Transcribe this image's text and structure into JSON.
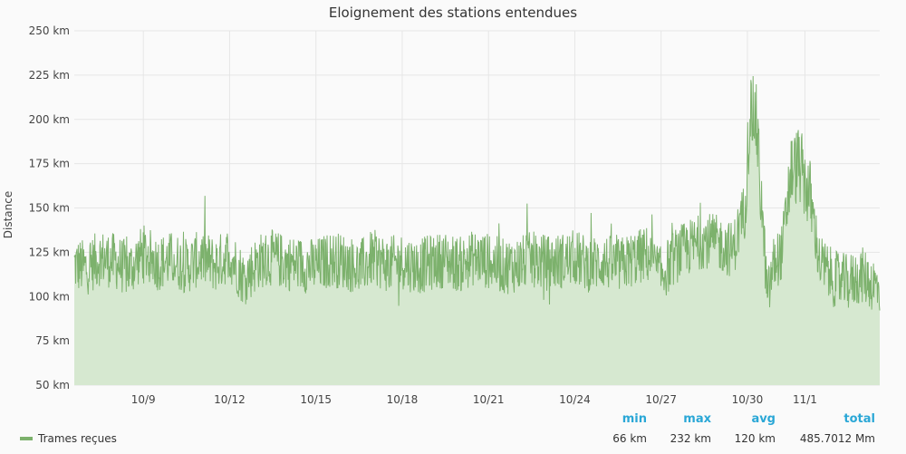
{
  "chart_data": {
    "type": "area",
    "title": "Eloignement des stations entendues",
    "ylabel": "Distance",
    "xlabel": "",
    "ylim": [
      50,
      250
    ],
    "yticks": [
      "50 km",
      "75 km",
      "100 km",
      "125 km",
      "150 km",
      "175 km",
      "200 km",
      "225 km",
      "250 km"
    ],
    "ytick_values": [
      50,
      75,
      100,
      125,
      150,
      175,
      200,
      225,
      250
    ],
    "xticks": [
      "10/9",
      "10/12",
      "10/15",
      "10/18",
      "10/21",
      "10/24",
      "10/27",
      "10/30",
      "11/1"
    ],
    "xtick_days": [
      9,
      12,
      15,
      18,
      21,
      24,
      27,
      30,
      32
    ],
    "xlim_days": [
      6.6,
      34.6
    ],
    "grid": true,
    "legend": "bottom-left",
    "series": [
      {
        "name": "Trames reçues",
        "color": "#7cb16c",
        "fill": "#d6e8d0",
        "x_days": [
          6.6,
          7.0,
          7.5,
          8.0,
          8.5,
          9.0,
          9.5,
          10.0,
          10.5,
          11.0,
          11.5,
          12.0,
          12.5,
          13.0,
          13.5,
          14.0,
          14.5,
          15.0,
          15.5,
          16.0,
          16.5,
          17.0,
          17.5,
          18.0,
          18.5,
          19.0,
          19.5,
          20.0,
          20.5,
          21.0,
          21.5,
          22.0,
          22.5,
          23.0,
          23.5,
          24.0,
          24.5,
          25.0,
          25.5,
          26.0,
          26.5,
          27.0,
          27.5,
          28.0,
          28.5,
          29.0,
          29.5,
          29.9,
          30.1,
          30.3,
          30.5,
          30.7,
          30.9,
          31.2,
          31.5,
          31.8,
          32.2,
          32.5,
          33.0,
          33.5,
          34.0,
          34.6
        ],
        "values": [
          118,
          116,
          122,
          120,
          115,
          125,
          119,
          121,
          117,
          122,
          118,
          124,
          110,
          120,
          122,
          119,
          118,
          117,
          121,
          120,
          116,
          122,
          118,
          120,
          117,
          119,
          121,
          118,
          122,
          120,
          117,
          118,
          121,
          119,
          120,
          122,
          118,
          120,
          117,
          121,
          124,
          112,
          123,
          128,
          132,
          130,
          126,
          150,
          205,
          200,
          150,
          98,
          118,
          125,
          170,
          175,
          155,
          120,
          110,
          108,
          112,
          104
        ],
        "min_label": "66 km",
        "max_label": "232 km",
        "avg_label": "120 km",
        "total_label": "485.7012 Mm"
      }
    ]
  },
  "stats_headers": {
    "min": "min",
    "max": "max",
    "avg": "avg",
    "total": "total"
  }
}
